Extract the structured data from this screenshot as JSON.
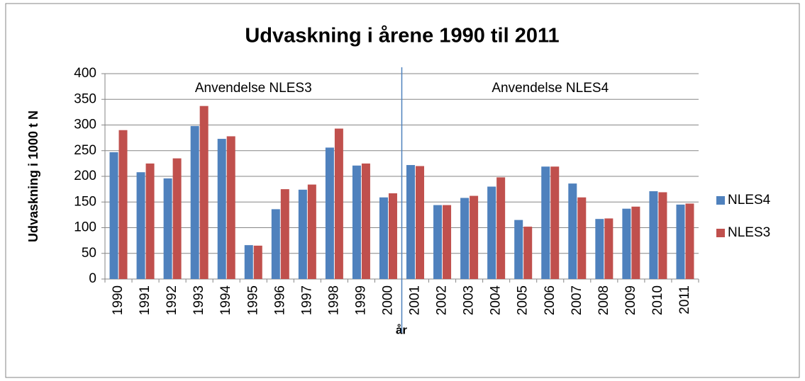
{
  "chart_data": {
    "type": "bar",
    "title": "Udvaskning i årene 1990 til 2011",
    "x_label": "år",
    "y_label": "Udvaskning i 1000 t N",
    "annotations": [
      "Anvendelse NLES3",
      "Anvendelse NLES4"
    ],
    "categories": [
      "1990",
      "1991",
      "1992",
      "1993",
      "1994",
      "1995",
      "1996",
      "1997",
      "1998",
      "1999",
      "2000",
      "2001",
      "2002",
      "2003",
      "2004",
      "2005",
      "2006",
      "2007",
      "2008",
      "2009",
      "2010",
      "2011"
    ],
    "series": [
      {
        "name": "NLES4",
        "color": "#4f81bd",
        "values": [
          247,
          208,
          196,
          298,
          273,
          66,
          136,
          174,
          256,
          221,
          159,
          222,
          144,
          158,
          180,
          115,
          219,
          186,
          117,
          137,
          171,
          145
        ]
      },
      {
        "name": "NLES3",
        "color": "#c0504d",
        "values": [
          290,
          225,
          235,
          337,
          278,
          65,
          175,
          184,
          293,
          225,
          167,
          220,
          144,
          162,
          198,
          102,
          219,
          159,
          118,
          141,
          169,
          147
        ]
      }
    ],
    "ylim": [
      0,
      400
    ],
    "yticks": [
      0,
      50,
      100,
      150,
      200,
      250,
      300,
      350,
      400
    ],
    "grid": true,
    "legend": "right"
  }
}
